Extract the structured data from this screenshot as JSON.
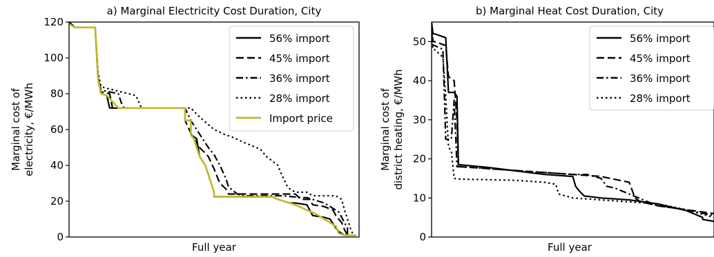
{
  "chart_data": [
    {
      "type": "line",
      "title": "a) Marginal Electricity Cost Duration, City",
      "xlabel": "Full year",
      "ylabel": [
        "Marginal cost of",
        "electricity, €/MWh"
      ],
      "xlim": [
        0,
        1
      ],
      "ylim": [
        0,
        120
      ],
      "yticks": [
        0,
        20,
        40,
        60,
        80,
        100,
        120
      ],
      "legend_position": "top-right",
      "grid": false,
      "series": [
        {
          "name": "56% import",
          "style": "solid",
          "color": "#000000",
          "x": [
            0,
            0.02,
            0.02,
            0.09,
            0.1,
            0.11,
            0.13,
            0.14,
            0.17,
            0.17,
            0.4,
            0.4,
            0.42,
            0.42,
            0.44,
            0.45,
            0.47,
            0.48,
            0.49,
            0.5,
            0.5,
            0.55,
            0.7,
            0.72,
            0.74,
            0.76,
            0.78,
            0.82,
            0.84,
            0.88,
            0.9,
            0.92,
            0.93,
            0.95,
            0.96
          ],
          "y": [
            120,
            117,
            117,
            117,
            88,
            80,
            79,
            72,
            72,
            72,
            72,
            65,
            65,
            57,
            55,
            45,
            40,
            35,
            30,
            25,
            22.5,
            22.5,
            22.5,
            21,
            20,
            19,
            19,
            18,
            12,
            11,
            10,
            5,
            3,
            1,
            1
          ]
        },
        {
          "name": "45% import",
          "style": "dashed",
          "color": "#000000",
          "x": [
            0,
            0.02,
            0.02,
            0.09,
            0.1,
            0.11,
            0.14,
            0.15,
            0.17,
            0.4,
            0.4,
            0.42,
            0.43,
            0.45,
            0.48,
            0.5,
            0.52,
            0.54,
            0.55,
            0.7,
            0.75,
            0.78,
            0.8,
            0.83,
            0.84,
            0.88,
            0.91,
            0.92,
            0.94,
            0.95,
            0.96
          ],
          "y": [
            120,
            117,
            117,
            117,
            89,
            81,
            80,
            72,
            72,
            72,
            65,
            58,
            55,
            50,
            45,
            38,
            30,
            27,
            24,
            24,
            24,
            24,
            21,
            21,
            18,
            17,
            15,
            12,
            8,
            4,
            1
          ]
        },
        {
          "name": "36% import",
          "style": "dashdot",
          "color": "#000000",
          "x": [
            0,
            0.02,
            0.02,
            0.09,
            0.1,
            0.11,
            0.14,
            0.17,
            0.18,
            0.19,
            0.4,
            0.42,
            0.44,
            0.46,
            0.48,
            0.5,
            0.52,
            0.54,
            0.55,
            0.58,
            0.6,
            0.74,
            0.8,
            0.82,
            0.86,
            0.88,
            0.9,
            0.93,
            0.96,
            0.96
          ],
          "y": [
            120,
            117,
            117,
            117,
            90,
            82,
            81,
            80,
            75,
            72,
            72,
            65,
            60,
            55,
            50,
            46,
            40,
            33,
            28,
            24,
            23,
            23,
            22,
            22,
            20,
            19,
            17,
            14,
            5,
            1
          ]
        },
        {
          "name": "28% import",
          "style": "dotted",
          "color": "#000000",
          "x": [
            0,
            0.02,
            0.02,
            0.09,
            0.1,
            0.11,
            0.13,
            0.23,
            0.25,
            0.27,
            0.4,
            0.42,
            0.45,
            0.5,
            0.54,
            0.56,
            0.6,
            0.66,
            0.68,
            0.72,
            0.73,
            0.75,
            0.76,
            0.78,
            0.82,
            0.84,
            0.86,
            0.88,
            0.92,
            0.94,
            0.95,
            0.97,
            0.98
          ],
          "y": [
            120,
            117,
            117,
            117,
            92,
            84,
            83,
            79,
            72,
            72,
            72,
            72,
            67,
            60,
            57,
            56,
            53,
            49,
            45,
            40,
            36,
            29,
            27,
            25,
            25,
            23,
            23,
            23,
            23,
            21,
            15,
            5,
            1
          ]
        },
        {
          "name": "Import price",
          "style": "solid",
          "color": "#bcb92b",
          "x": [
            0,
            0.02,
            0.02,
            0.09,
            0.1,
            0.11,
            0.13,
            0.17,
            0.35,
            0.4,
            0.4,
            0.42,
            0.42,
            0.43,
            0.45,
            0.47,
            0.48,
            0.49,
            0.5,
            0.5,
            0.7,
            0.72,
            0.74,
            0.76,
            0.78,
            0.82,
            0.85,
            0.88,
            0.9,
            0.92,
            0.93,
            0.95,
            0.97,
            0.99
          ],
          "y": [
            119,
            117,
            117,
            117,
            88,
            80,
            79,
            72,
            72,
            72,
            65,
            65,
            57,
            55,
            45,
            40,
            35,
            30,
            25,
            22.5,
            22.5,
            21,
            20,
            19,
            18,
            15,
            13,
            10,
            8,
            6,
            2,
            1,
            1,
            1
          ]
        }
      ]
    },
    {
      "type": "line",
      "title": "b) Marginal Heat Cost Duration, City",
      "xlabel": "Full year",
      "ylabel": [
        "Marginal cost of",
        "district heating, €/MWh"
      ],
      "xlim": [
        0,
        1
      ],
      "ylim": [
        0,
        55
      ],
      "yticks": [
        0,
        10,
        20,
        30,
        40,
        50
      ],
      "legend_position": "top-right",
      "grid": false,
      "series": [
        {
          "name": "56% import",
          "style": "solid",
          "color": "#000000",
          "x": [
            0,
            0.005,
            0.01,
            0.05,
            0.06,
            0.08,
            0.09,
            0.095,
            0.1,
            0.2,
            0.4,
            0.5,
            0.51,
            0.52,
            0.54,
            0.6,
            0.7,
            0.8,
            0.9,
            0.96,
            0.96,
            1
          ],
          "y": [
            55,
            52,
            52,
            51,
            37,
            37,
            36,
            18.5,
            18.5,
            17.8,
            16,
            15.5,
            13,
            12,
            10.5,
            10,
            9.5,
            8.5,
            6.8,
            5,
            4.5,
            4
          ]
        },
        {
          "name": "45% import",
          "style": "dashed",
          "color": "#000000",
          "x": [
            0,
            0.005,
            0.01,
            0.05,
            0.06,
            0.08,
            0.09,
            0.095,
            0.1,
            0.2,
            0.5,
            0.6,
            0.7,
            0.72,
            0.74,
            0.8,
            0.9,
            1
          ],
          "y": [
            54,
            50,
            50,
            49,
            41,
            40,
            30,
            18,
            18,
            17.5,
            16,
            15.5,
            14,
            10,
            9,
            8,
            7,
            6
          ]
        },
        {
          "name": "36% import",
          "style": "dashdot",
          "color": "#000000",
          "x": [
            0,
            0.005,
            0.01,
            0.04,
            0.05,
            0.07,
            0.08,
            0.09,
            0.1,
            0.3,
            0.5,
            0.55,
            0.6,
            0.62,
            0.65,
            0.8,
            0.9,
            1
          ],
          "y": [
            53,
            49,
            49,
            48,
            25,
            25,
            35,
            18,
            18,
            17,
            16,
            16,
            15,
            13,
            12.5,
            8,
            7,
            5.5
          ]
        },
        {
          "name": "28% import",
          "style": "dotted",
          "color": "#000000",
          "x": [
            0,
            0.005,
            0.01,
            0.04,
            0.05,
            0.06,
            0.07,
            0.08,
            0.1,
            0.3,
            0.4,
            0.44,
            0.45,
            0.5,
            0.6,
            0.8,
            0.9,
            1
          ],
          "y": [
            50,
            48,
            48,
            46,
            36,
            23,
            22,
            15,
            14.8,
            14.5,
            14,
            13.5,
            11,
            10,
            9.5,
            8.5,
            7,
            5
          ]
        }
      ]
    }
  ]
}
